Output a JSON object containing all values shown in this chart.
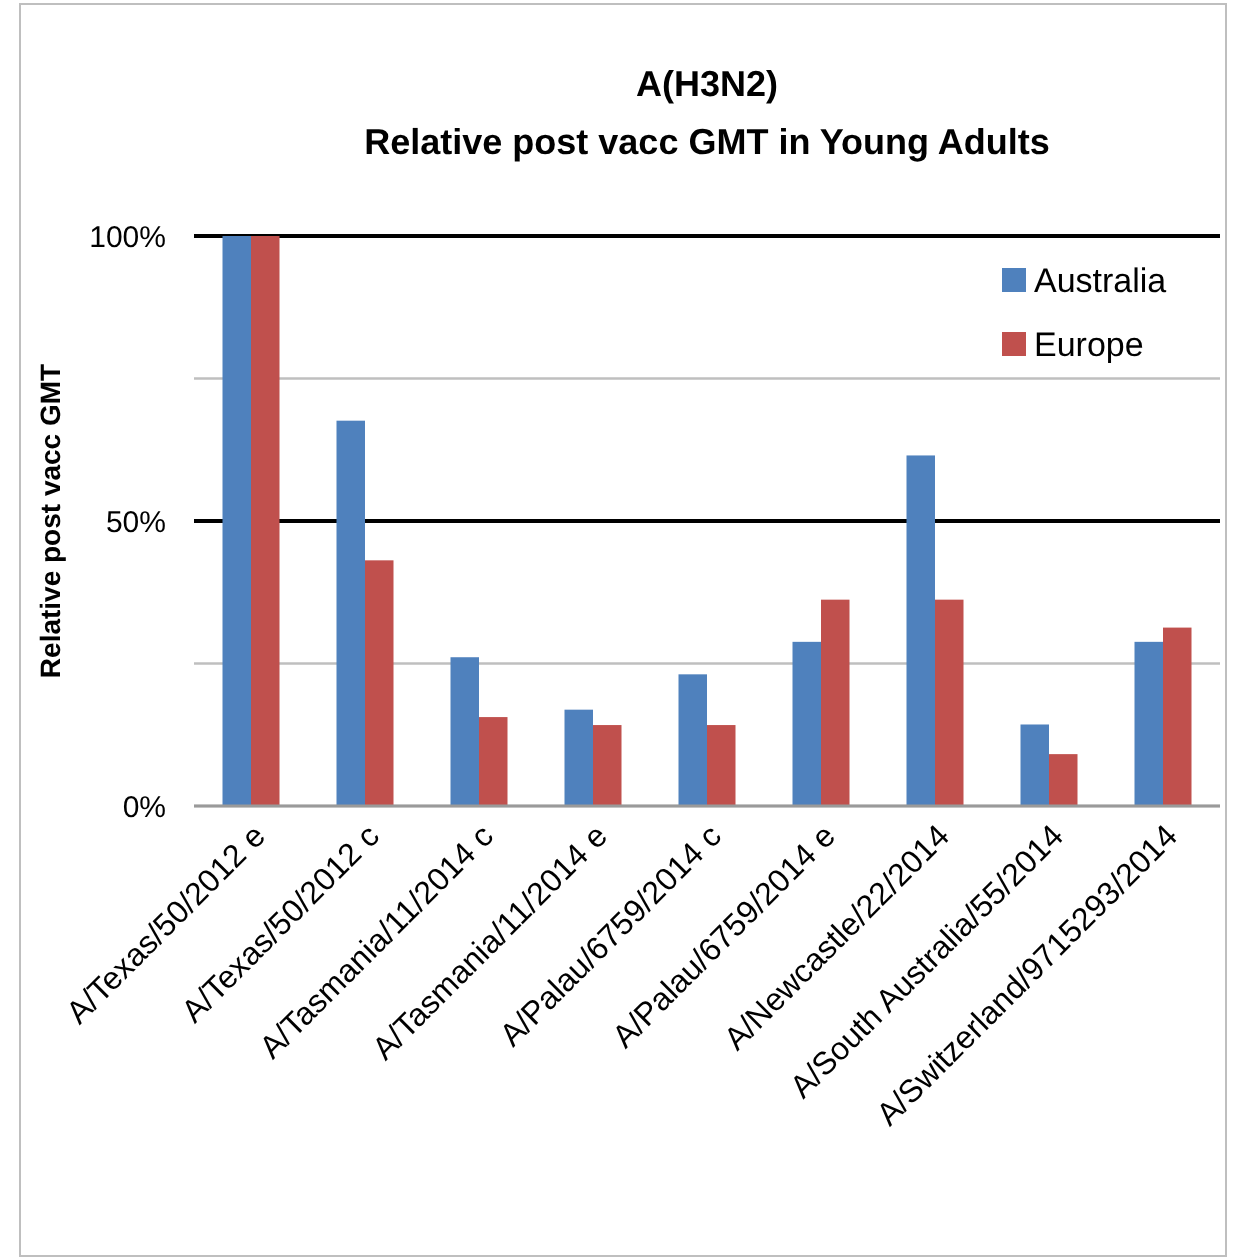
{
  "chart_data": {
    "type": "bar",
    "title": "A(H3N2)",
    "subtitle": "Relative post vacc GMT  in Young Adults",
    "ylabel": "Relative post vacc GMT",
    "categories": [
      "A/Texas/50/2012 e",
      "A/Texas/50/2012 c",
      "A/Tasmania/11/2014 c",
      "A/Tasmania/11/2014 e",
      "A/Palau/6759/2014 c",
      "A/Palau/6759/2014 e",
      "A/Newcastle/22/2014",
      "A/South Australia/55/2014",
      "A/Switzerland/9715293/2014"
    ],
    "series": [
      {
        "name": "Australia",
        "color": "#4f81bd",
        "values": [
          100,
          67.6,
          26.1,
          16.9,
          23.1,
          28.8,
          61.5,
          14.3,
          28.8
        ]
      },
      {
        "name": "Europe",
        "color": "#c0504d",
        "values": [
          100,
          43.1,
          15.6,
          14.2,
          14.2,
          36.2,
          36.2,
          9.1,
          31.3
        ]
      }
    ],
    "ylim": [
      0,
      100
    ],
    "yticks": [
      {
        "value": 0,
        "label": "0%"
      },
      {
        "value": 25,
        "label": null
      },
      {
        "value": 50,
        "label": "50%"
      },
      {
        "value": 75,
        "label": null
      },
      {
        "value": 100,
        "label": "100%"
      }
    ],
    "grid": "y",
    "legend": "top right",
    "ref_lines": [
      {
        "axis": "y",
        "value": 50,
        "color": "#000000"
      },
      {
        "axis": "y",
        "value": 100,
        "color": "#000000"
      }
    ]
  }
}
